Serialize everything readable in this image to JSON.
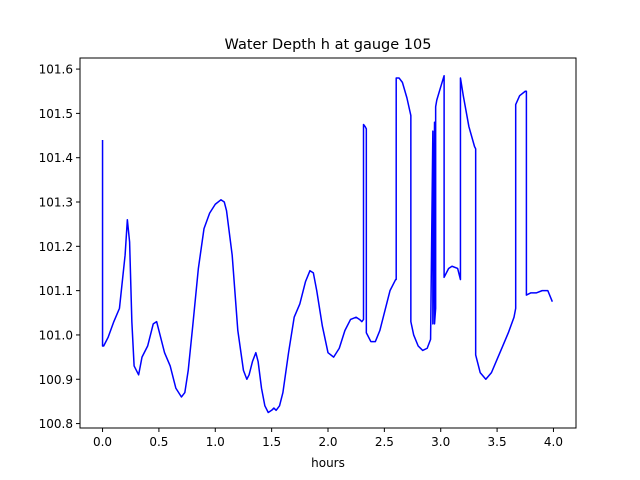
{
  "chart_data": {
    "type": "line",
    "title": "Water Depth h at gauge 105",
    "xlabel": "hours",
    "ylabel": "",
    "xlim": [
      -0.2,
      4.2
    ],
    "ylim": [
      100.79,
      101.625
    ],
    "grid": false,
    "legend": false,
    "xticks": [
      0.0,
      0.5,
      1.0,
      1.5,
      2.0,
      2.5,
      3.0,
      3.5,
      4.0
    ],
    "xtick_labels": [
      "0.0",
      "0.5",
      "1.0",
      "1.5",
      "2.0",
      "2.5",
      "3.0",
      "3.5",
      "4.0"
    ],
    "yticks": [
      100.8,
      100.9,
      101.0,
      101.1,
      101.2,
      101.3,
      101.4,
      101.5,
      101.6
    ],
    "ytick_labels": [
      "100.8",
      "100.9",
      "101.0",
      "101.1",
      "101.2",
      "101.3",
      "101.4",
      "101.5",
      "101.6"
    ],
    "colors": {
      "line": "#0000ff",
      "axes": "#000000",
      "background": "#ffffff"
    },
    "series": [
      {
        "x": [
          0.0,
          0.0,
          0.01,
          0.05,
          0.1,
          0.15,
          0.2,
          0.22,
          0.24,
          0.26,
          0.28,
          0.32,
          0.35,
          0.4,
          0.45,
          0.48,
          0.5,
          0.55,
          0.6,
          0.65,
          0.7,
          0.73,
          0.76,
          0.8,
          0.85,
          0.9,
          0.95,
          1.0,
          1.05,
          1.08,
          1.1,
          1.15,
          1.2,
          1.25,
          1.28,
          1.3,
          1.33,
          1.36,
          1.38,
          1.41,
          1.44,
          1.47,
          1.5,
          1.52,
          1.54,
          1.57,
          1.6,
          1.65,
          1.7,
          1.75,
          1.8,
          1.84,
          1.87,
          1.9,
          1.95,
          2.0,
          2.05,
          2.1,
          2.15,
          2.2,
          2.25,
          2.28,
          2.3,
          2.315,
          2.315,
          2.33,
          2.34,
          2.34,
          2.38,
          2.42,
          2.46,
          2.5,
          2.55,
          2.6,
          2.605,
          2.605,
          2.63,
          2.66,
          2.7,
          2.735,
          2.735,
          2.76,
          2.8,
          2.84,
          2.88,
          2.91,
          2.93,
          2.93,
          2.945,
          2.945,
          2.955,
          2.955,
          2.965,
          3.0,
          3.03,
          3.03,
          3.07,
          3.1,
          3.15,
          3.175,
          3.175,
          3.2,
          3.25,
          3.3,
          3.31,
          3.31,
          3.35,
          3.4,
          3.45,
          3.5,
          3.55,
          3.6,
          3.65,
          3.665,
          3.665,
          3.7,
          3.75,
          3.76,
          3.76,
          3.8,
          3.85,
          3.9,
          3.95,
          3.99
        ],
        "y": [
          101.44,
          100.975,
          100.975,
          100.995,
          101.03,
          101.06,
          101.18,
          101.26,
          101.21,
          101.03,
          100.93,
          100.91,
          100.95,
          100.975,
          101.025,
          101.03,
          101.01,
          100.96,
          100.93,
          100.88,
          100.86,
          100.87,
          100.92,
          101.02,
          101.15,
          101.24,
          101.275,
          101.295,
          101.305,
          101.3,
          101.28,
          101.18,
          101.01,
          100.92,
          100.9,
          100.91,
          100.94,
          100.96,
          100.94,
          100.88,
          100.84,
          100.825,
          100.83,
          100.835,
          100.83,
          100.84,
          100.87,
          100.96,
          101.04,
          101.07,
          101.12,
          101.145,
          101.14,
          101.1,
          101.02,
          100.96,
          100.95,
          100.97,
          101.01,
          101.035,
          101.04,
          101.035,
          101.03,
          101.035,
          101.475,
          101.47,
          101.465,
          101.005,
          100.985,
          100.985,
          101.01,
          101.05,
          101.1,
          101.125,
          101.125,
          101.58,
          101.58,
          101.57,
          101.535,
          101.495,
          101.03,
          101.0,
          100.975,
          100.965,
          100.97,
          100.99,
          101.46,
          101.025,
          101.48,
          101.025,
          101.06,
          101.515,
          101.53,
          101.56,
          101.585,
          101.13,
          101.15,
          101.155,
          101.15,
          101.125,
          101.58,
          101.54,
          101.47,
          101.425,
          101.42,
          100.955,
          100.915,
          100.9,
          100.915,
          100.945,
          100.975,
          101.005,
          101.04,
          101.06,
          101.52,
          101.54,
          101.55,
          101.55,
          101.09,
          101.095,
          101.095,
          101.1,
          101.1,
          101.075
        ]
      }
    ]
  }
}
